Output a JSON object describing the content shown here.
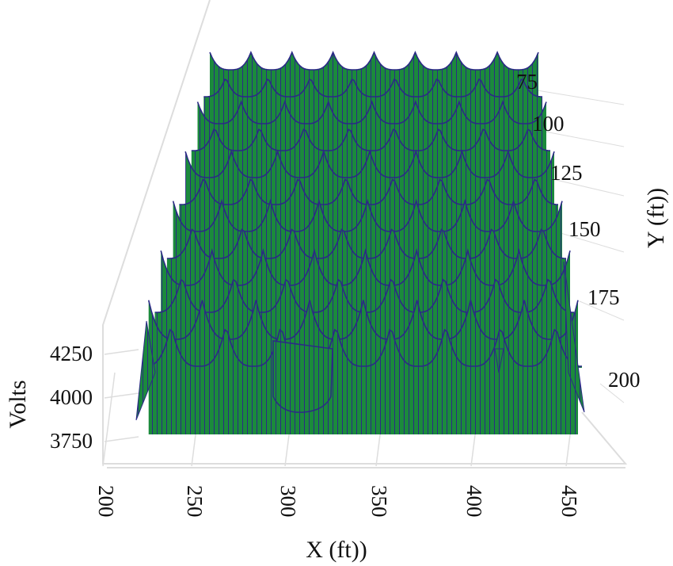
{
  "chart_data": {
    "type": "surface",
    "title": "",
    "xlabel": "X (ft))",
    "ylabel": "Y (ft))",
    "zlabel": "Volts",
    "x_ticks": [
      200,
      250,
      300,
      350,
      400,
      450
    ],
    "y_ticks": [
      75,
      100,
      125,
      150,
      175,
      200
    ],
    "z_ticks": [
      4250,
      4000,
      3750
    ],
    "xlim": [
      200,
      460
    ],
    "ylim": [
      60,
      210
    ],
    "zlim": [
      3700,
      4300
    ],
    "grid": true,
    "legend": "none",
    "colors": {
      "surface": "#1b8a3c",
      "mesh": "#2b2a85",
      "grid": "#dddddd"
    }
  }
}
